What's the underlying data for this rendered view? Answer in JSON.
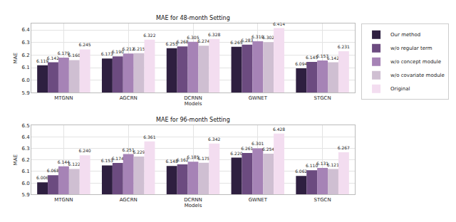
{
  "chart_data": [
    {
      "type": "bar",
      "title": "MAE for 48-month Setting",
      "x_label": "Models",
      "y_label": "MAE",
      "categories": [
        "MTGNN",
        "AGCRN",
        "DCRNN",
        "GWNET",
        "STGCN"
      ],
      "series": [
        {
          "name": "Our method",
          "color": "#2e1f40",
          "values": [
            6.119,
            6.173,
            6.255,
            6.265,
            6.094
          ],
          "value_labels": [
            "6.119",
            "6.173",
            "6.255",
            "6.265",
            "6.094"
          ]
        },
        {
          "name": "w/o regular term",
          "color": "#6c4b80",
          "values": [
            6.142,
            6.19,
            6.268,
            6.283,
            6.145
          ],
          "value_labels": [
            "6.142",
            "6.190",
            "6.268",
            "6.283",
            "6.145"
          ]
        },
        {
          "name": "w/o concept module",
          "color": "#a683b6",
          "values": [
            6.179,
            6.212,
            6.305,
            6.31,
            6.157
          ],
          "value_labels": [
            "6.179",
            "6.212",
            "6.305",
            "6.310",
            "6.157"
          ]
        },
        {
          "name": "w/o covariate module",
          "color": "#cfbfd2",
          "values": [
            6.16,
            6.215,
            6.274,
            6.302,
            6.142
          ],
          "value_labels": [
            "6.160",
            "6.215",
            "6.274",
            "6.302",
            "6.142"
          ]
        },
        {
          "name": "Original",
          "color": "#f3ddf0",
          "values": [
            6.245,
            6.322,
            6.328,
            6.414,
            6.231
          ],
          "value_labels": [
            "6.245",
            "6.322",
            "6.328",
            "6.414",
            "6.231"
          ]
        }
      ],
      "ylim": [
        5.9,
        6.45
      ],
      "yticks": [
        5.9,
        {
          "value": 6.0,
          "label": "6.0"
        },
        6.1,
        6.2,
        6.3,
        6.4
      ],
      "grid": true,
      "legend": "right",
      "data_labels": true
    },
    {
      "type": "bar",
      "title": "MAE for 96-month Setting",
      "x_label": "Models",
      "y_label": "MAE",
      "categories": [
        "MTGNN",
        "AGCRN",
        "DCRNN",
        "GWNET",
        "STGCN"
      ],
      "series": [
        {
          "name": "Our method",
          "color": "#2e1f40",
          "values": [
            6.006,
            6.153,
            6.148,
            6.22,
            6.062
          ],
          "value_labels": [
            "6.006",
            "6.153",
            "6.148",
            "6.220",
            "6.062"
          ]
        },
        {
          "name": "w/o regular term",
          "color": "#6c4b80",
          "values": [
            6.068,
            6.174,
            6.162,
            6.261,
            6.11
          ],
          "value_labels": [
            "6.068",
            "6.174",
            "6.162",
            "6.261",
            "6.110"
          ]
        },
        {
          "name": "w/o concept module",
          "color": "#a683b6",
          "values": [
            6.144,
            6.251,
            6.185,
            6.301,
            6.131
          ],
          "value_labels": [
            "6.144",
            "6.251",
            "6.185",
            "6.301",
            "6.131"
          ]
        },
        {
          "name": "w/o covariate module",
          "color": "#cfbfd2",
          "values": [
            6.122,
            6.229,
            6.175,
            6.254,
            6.121
          ],
          "value_labels": [
            "6.122",
            "6.229",
            "6.175",
            "6.254",
            "6.121"
          ]
        },
        {
          "name": "Original",
          "color": "#f3ddf0",
          "values": [
            6.24,
            6.361,
            6.342,
            6.428,
            6.267
          ],
          "value_labels": [
            "6.240",
            "6.361",
            "6.342",
            "6.428",
            "6.267"
          ]
        }
      ],
      "ylim": [
        5.9,
        6.5
      ],
      "yticks": [
        5.9,
        {
          "value": 6.0,
          "label": "6.0"
        },
        6.1,
        6.2,
        6.3,
        6.4,
        6.5
      ],
      "grid": true,
      "data_labels": true
    }
  ]
}
